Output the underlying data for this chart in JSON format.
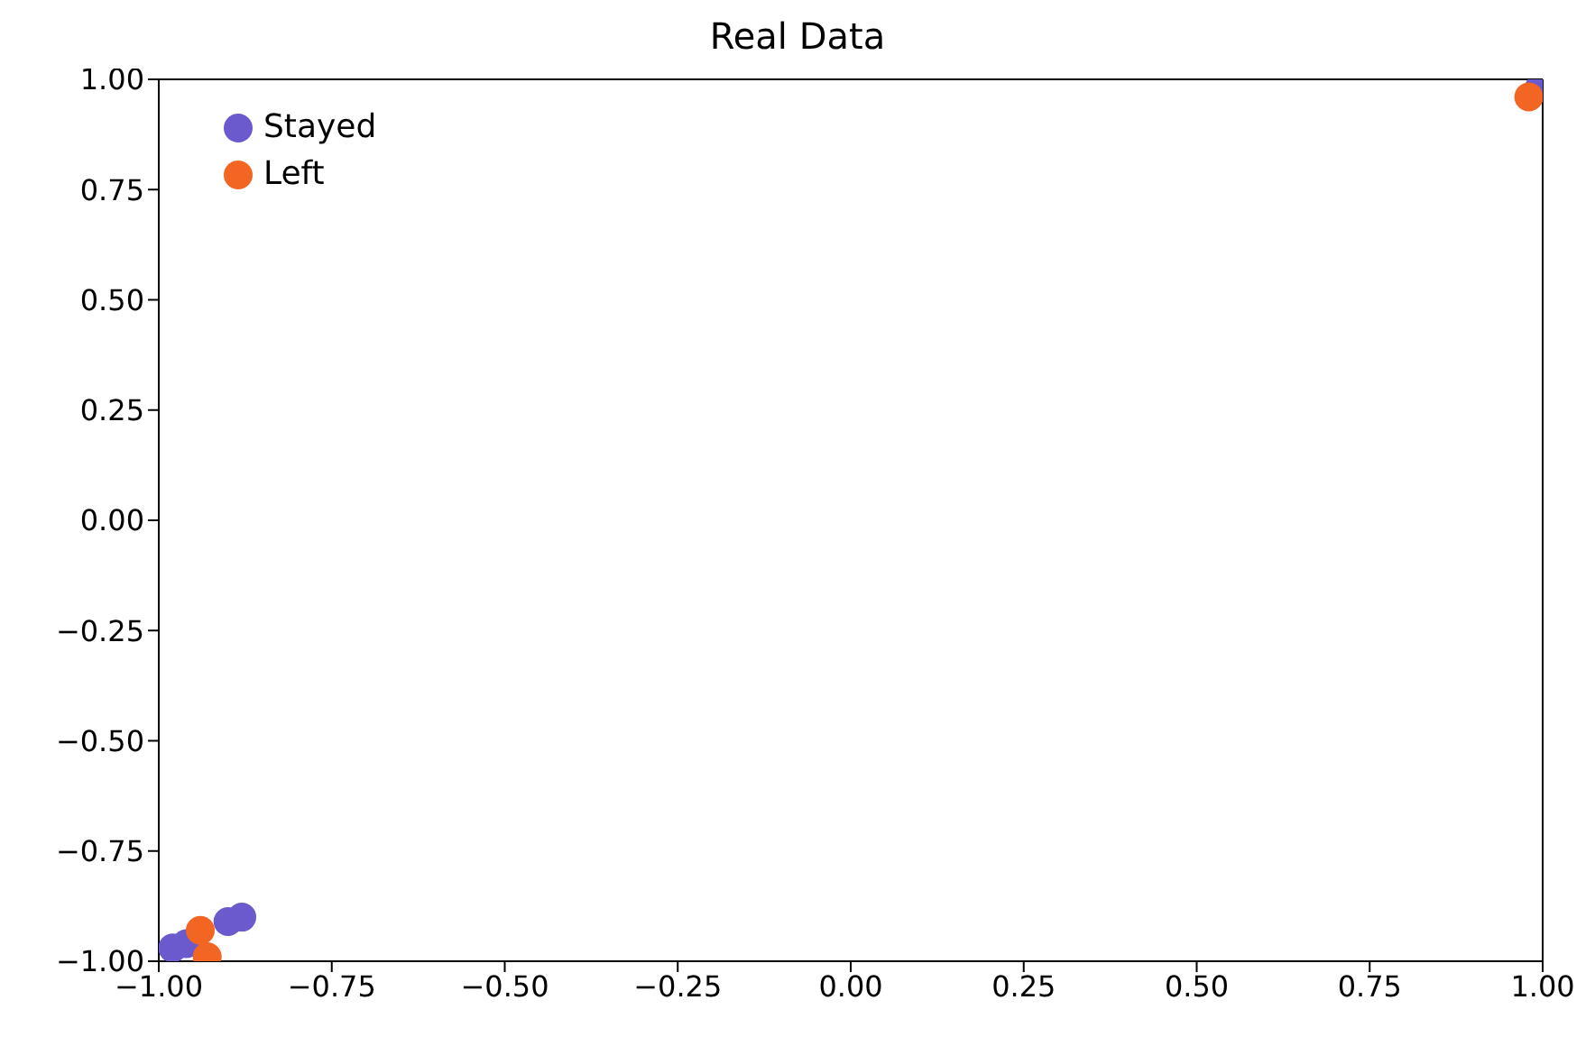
{
  "chart_data": {
    "type": "scatter",
    "title": "Real Data",
    "legend": "top left",
    "grid": false,
    "marker": "circle",
    "xlim": [
      -1,
      1
    ],
    "ylim": [
      -1,
      1
    ],
    "xticks": [
      {
        "value": -1,
        "label": "−1.00"
      },
      {
        "value": -0.75,
        "label": "−0.75"
      },
      {
        "value": -0.5,
        "label": "−0.50"
      },
      {
        "value": -0.25,
        "label": "−0.25"
      },
      {
        "value": 0,
        "label": "0.00"
      },
      {
        "value": 0.25,
        "label": "0.25"
      },
      {
        "value": 0.5,
        "label": "0.50"
      },
      {
        "value": 0.75,
        "label": "0.75"
      },
      {
        "value": 1,
        "label": "1.00"
      }
    ],
    "yticks": [
      {
        "value": -1,
        "label": "−1.00"
      },
      {
        "value": -0.75,
        "label": "−0.75"
      },
      {
        "value": -0.5,
        "label": "−0.50"
      },
      {
        "value": -0.25,
        "label": "−0.25"
      },
      {
        "value": 0,
        "label": "0.00"
      },
      {
        "value": 0.25,
        "label": "0.25"
      },
      {
        "value": 0.5,
        "label": "0.50"
      },
      {
        "value": 0.75,
        "label": "0.75"
      },
      {
        "value": 1,
        "label": "1.00"
      }
    ],
    "series": [
      {
        "name": "Stayed",
        "color": "#6a5acd",
        "x": [
          -0.98,
          -0.96,
          -0.9,
          -0.88,
          0.995
        ],
        "values": [
          -0.97,
          -0.96,
          -0.91,
          -0.9,
          0.98
        ]
      },
      {
        "name": "Left",
        "color": "#f26522",
        "x": [
          -0.94,
          -0.93,
          0.98
        ],
        "values": [
          -0.93,
          -0.99,
          0.96
        ]
      }
    ]
  }
}
